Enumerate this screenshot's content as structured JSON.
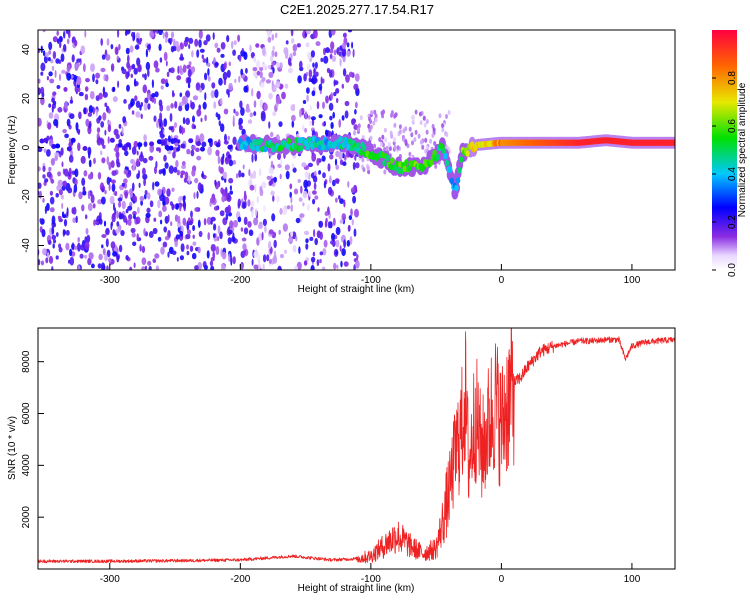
{
  "figure_title": "C2E1.2025.277.17.54.R17",
  "chart_data": [
    {
      "type": "heatmap",
      "xlabel": "Height of straight line (km)",
      "ylabel": "Frequency (Hz)",
      "xlim": [
        -355,
        133
      ],
      "ylim": [
        -50,
        48
      ],
      "xticks": [
        -300,
        -200,
        -100,
        0,
        100
      ],
      "yticks": [
        -40,
        -20,
        0,
        20,
        40
      ],
      "colorbar": {
        "label": "Normalized spectral amplitude",
        "range": [
          0,
          1
        ],
        "ticks": [
          0.0,
          0.2,
          0.4,
          0.6,
          0.8
        ]
      },
      "ridge": [
        {
          "x": -200,
          "freq": 2,
          "amp": 0.4
        },
        {
          "x": -180,
          "freq": 1,
          "amp": 0.45
        },
        {
          "x": -160,
          "freq": 1,
          "amp": 0.5
        },
        {
          "x": -140,
          "freq": 2,
          "amp": 0.4
        },
        {
          "x": -120,
          "freq": 2,
          "amp": 0.45
        },
        {
          "x": -100,
          "freq": -2,
          "amp": 0.55
        },
        {
          "x": -80,
          "freq": -8,
          "amp": 0.55
        },
        {
          "x": -60,
          "freq": -8,
          "amp": 0.6
        },
        {
          "x": -45,
          "freq": 0,
          "amp": 0.5
        },
        {
          "x": -35,
          "freq": -18,
          "amp": 0.3
        },
        {
          "x": -30,
          "freq": -2,
          "amp": 0.6
        },
        {
          "x": -20,
          "freq": 1,
          "amp": 0.7
        },
        {
          "x": 0,
          "freq": 2,
          "amp": 0.8
        },
        {
          "x": 20,
          "freq": 2,
          "amp": 0.85
        },
        {
          "x": 40,
          "freq": 2,
          "amp": 0.9
        },
        {
          "x": 60,
          "freq": 2,
          "amp": 0.95
        },
        {
          "x": 80,
          "freq": 3,
          "amp": 0.95
        },
        {
          "x": 100,
          "freq": 2,
          "amp": 0.95
        },
        {
          "x": 133,
          "freq": 2,
          "amp": 0.95
        }
      ]
    },
    {
      "type": "line",
      "xlabel": "Height of straight line (km)",
      "ylabel": "SNR (10 * v/v)",
      "xlim": [
        -355,
        133
      ],
      "ylim": [
        0,
        9300
      ],
      "xticks": [
        -300,
        -200,
        -100,
        0,
        100
      ],
      "yticks": [
        2000,
        4000,
        6000,
        8000
      ],
      "color": "#ee2222",
      "series": [
        {
          "x": [
            -355,
            -300,
            -250,
            -200,
            -160,
            -130,
            -110,
            -100,
            -90,
            -80,
            -70,
            -60,
            -50,
            -45,
            -40,
            -35,
            -30,
            -28,
            -25,
            -20,
            -15,
            -10,
            -5,
            0,
            5,
            10,
            15,
            20,
            25,
            30,
            40,
            50,
            60,
            70,
            80,
            90,
            95,
            100,
            110,
            120,
            133
          ],
          "y": [
            300,
            300,
            320,
            350,
            500,
            350,
            400,
            500,
            900,
            1300,
            900,
            600,
            800,
            1800,
            3000,
            4500,
            5500,
            7000,
            4000,
            6000,
            4500,
            5500,
            6500,
            5500,
            6500,
            7200,
            7400,
            7800,
            8100,
            8400,
            8600,
            8700,
            8800,
            8800,
            8850,
            8850,
            8100,
            8600,
            8750,
            8800,
            8850
          ]
        }
      ]
    }
  ]
}
